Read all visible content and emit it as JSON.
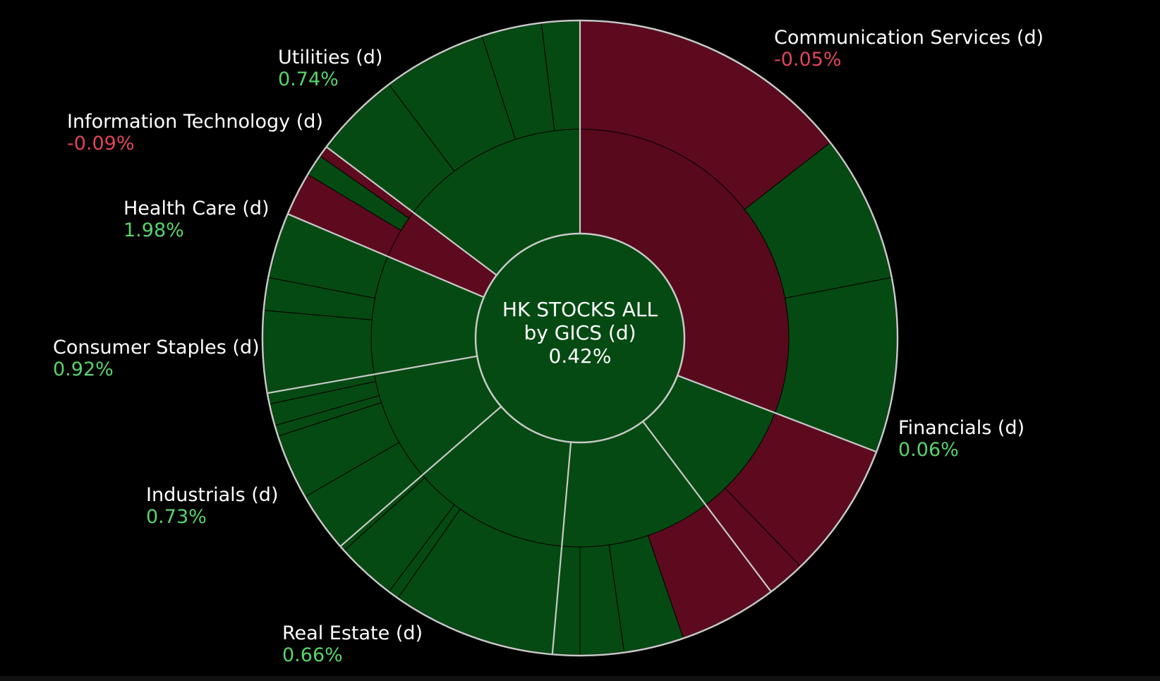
{
  "chart_data": {
    "type": "sunburst",
    "title": "HK STOCKS ALL",
    "subtitle": "by GICS (d)",
    "total_change": "0.42%",
    "colors": {
      "positive": "#054a12",
      "negative": "#5d0a1f",
      "border": "#c8c8c8",
      "background": "#000000"
    },
    "sectors": [
      {
        "name": "Communication Services (d)",
        "change": "-0.05%",
        "sign": "neg",
        "start": 0,
        "end": 111,
        "inner_color": "#58091c",
        "outer": [
          {
            "start": 0,
            "end": 52,
            "color": "#5d0a1f"
          },
          {
            "start": 52,
            "end": 79,
            "color": "#054a12"
          },
          {
            "start": 79,
            "end": 111,
            "color": "#054a12"
          }
        ]
      },
      {
        "name": "Financials (d)",
        "change": "0.06%",
        "sign": "pos",
        "start": 111,
        "end": 143,
        "inner_color": "#054a12",
        "outer": [
          {
            "start": 111,
            "end": 136,
            "color": "#5d0a1f"
          },
          {
            "start": 136,
            "end": 143,
            "color": "#5d0a1f"
          }
        ]
      },
      {
        "name": "Real Estate (d)",
        "change": "0.66%",
        "sign": "pos",
        "start": 143,
        "end": 185,
        "inner_color": "#054a12",
        "outer": [
          {
            "start": 143,
            "end": 161,
            "color": "#5d0a1f"
          },
          {
            "start": 161,
            "end": 172,
            "color": "#054a12"
          },
          {
            "start": 172,
            "end": 180,
            "color": "#054a12"
          },
          {
            "start": 180,
            "end": 185,
            "color": "#054a12"
          }
        ]
      },
      {
        "name": "Industrials (d)",
        "change": "0.73%",
        "sign": "pos",
        "start": 185,
        "end": 229,
        "inner_color": "#054a12",
        "outer": [
          {
            "start": 185,
            "end": 215,
            "color": "#054a12"
          },
          {
            "start": 215,
            "end": 217,
            "color": "#054a12"
          },
          {
            "start": 217,
            "end": 228,
            "color": "#054a12"
          },
          {
            "start": 228,
            "end": 229,
            "color": "#054a12"
          }
        ]
      },
      {
        "name": "Consumer Staples (d)",
        "change": "0.92%",
        "sign": "pos",
        "start": 229,
        "end": 260,
        "inner_color": "#054a12",
        "outer": [
          {
            "start": 229,
            "end": 240,
            "color": "#054a12"
          },
          {
            "start": 240,
            "end": 252,
            "color": "#054a12"
          },
          {
            "start": 252,
            "end": 254,
            "color": "#054a12"
          },
          {
            "start": 254,
            "end": 258,
            "color": "#054a12"
          },
          {
            "start": 258,
            "end": 260,
            "color": "#054a12"
          }
        ]
      },
      {
        "name": "Health Care (d)",
        "change": "1.98%",
        "sign": "pos",
        "start": 260,
        "end": 293,
        "inner_color": "#054a12",
        "outer": [
          {
            "start": 260,
            "end": 275,
            "color": "#054a12"
          },
          {
            "start": 275,
            "end": 281,
            "color": "#054a12"
          },
          {
            "start": 281,
            "end": 293,
            "color": "#054a12"
          }
        ]
      },
      {
        "name": "Information Technology (d)",
        "change": "-0.09%",
        "sign": "neg",
        "start": 293,
        "end": 307,
        "inner_color": "#5d0a1f",
        "outer": [
          {
            "start": 293,
            "end": 301,
            "color": "#5d0a1f"
          },
          {
            "start": 301,
            "end": 305,
            "color": "#054a12"
          },
          {
            "start": 305,
            "end": 307,
            "color": "#5d0a1f"
          }
        ]
      },
      {
        "name": "Utilities (d)",
        "change": "0.74%",
        "sign": "pos",
        "start": 307,
        "end": 360,
        "inner_color": "#054a12",
        "outer": [
          {
            "start": 307,
            "end": 323,
            "color": "#054a12"
          },
          {
            "start": 323,
            "end": 342,
            "color": "#054a12"
          },
          {
            "start": 342,
            "end": 353,
            "color": "#054a12"
          },
          {
            "start": 353,
            "end": 360,
            "color": "#054a12"
          }
        ]
      }
    ]
  }
}
